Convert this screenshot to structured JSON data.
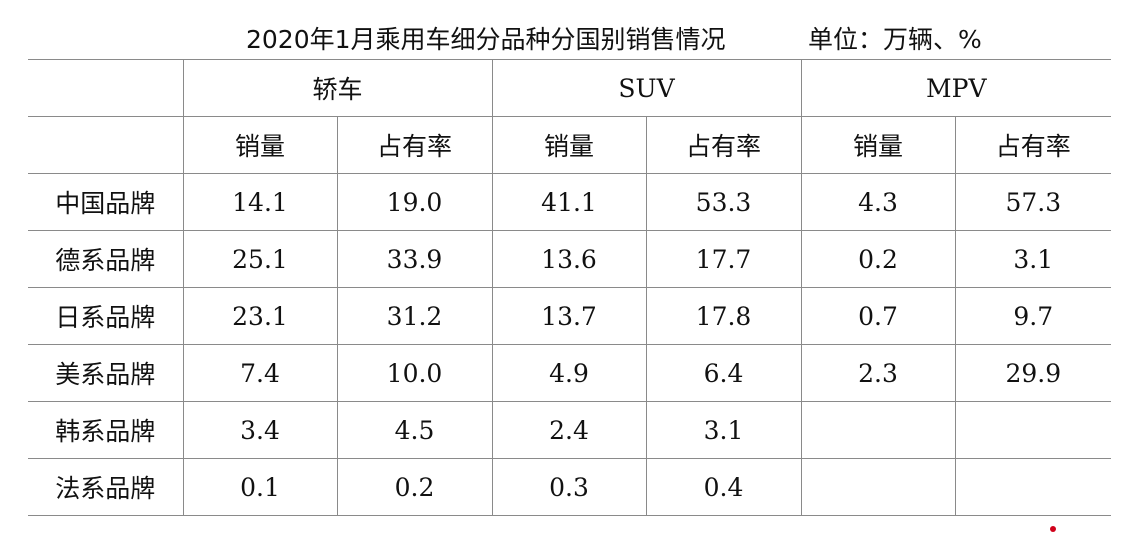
{
  "title": "2020年1月乘用车细分品种分国别销售情况",
  "unit": "单位：万辆、%",
  "chart_data": {
    "type": "table",
    "title": "2020年1月乘用车细分品种分国别销售情况",
    "unit": "单位：万辆、%",
    "groups": [
      "轿车",
      "SUV",
      "MPV"
    ],
    "subheaders": [
      "销量",
      "占有率",
      "销量",
      "占有率",
      "销量",
      "占有率"
    ],
    "rows": [
      {
        "label": "中国品牌",
        "values": [
          "14.1",
          "19.0",
          "41.1",
          "53.3",
          "4.3",
          "57.3"
        ]
      },
      {
        "label": "德系品牌",
        "values": [
          "25.1",
          "33.9",
          "13.6",
          "17.7",
          "0.2",
          "3.1"
        ]
      },
      {
        "label": "日系品牌",
        "values": [
          "23.1",
          "31.2",
          "13.7",
          "17.8",
          "0.7",
          "9.7"
        ]
      },
      {
        "label": "美系品牌",
        "values": [
          "7.4",
          "10.0",
          "4.9",
          "6.4",
          "2.3",
          "29.9"
        ]
      },
      {
        "label": "韩系品牌",
        "values": [
          "3.4",
          "4.5",
          "2.4",
          "3.1",
          "",
          ""
        ]
      },
      {
        "label": "法系品牌",
        "values": [
          "0.1",
          "0.2",
          "0.3",
          "0.4",
          "",
          ""
        ]
      }
    ]
  },
  "colors": {
    "grid_line": "#8a8a8a",
    "text": "#111111",
    "marker_dot": "#d0021b"
  }
}
